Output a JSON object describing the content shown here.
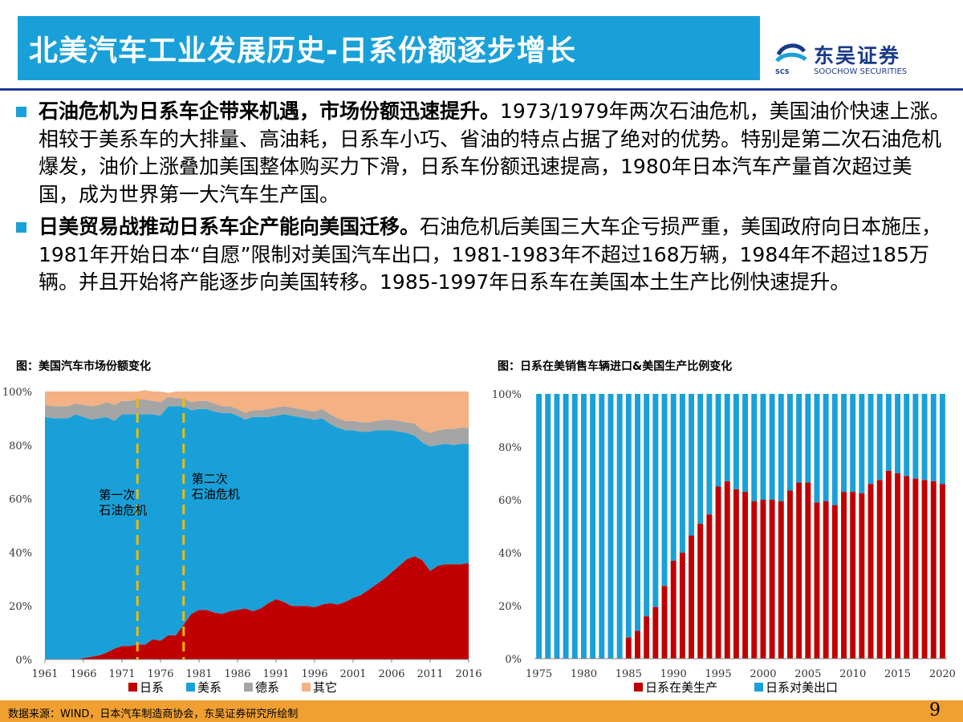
{
  "header": {
    "title": "北美汽车工业发展历史-日系份额逐步增长",
    "logo_cn": "东吴证券",
    "logo_en": "SOOCHOW SECURITIES",
    "logo_mark": "SCS"
  },
  "bullets": [
    {
      "bold": "石油危机为日系车企带来机遇，市场份额迅速提升。",
      "text": "1973/1979年两次石油危机，美国油价快速上涨。相较于美系车的大排量、高油耗，日系车小巧、省油的特点占据了绝对的优势。特别是第二次石油危机爆发，油价上涨叠加美国整体购买力下滑，日系车份额迅速提高，1980年日本汽车产量首次超过美国，成为世界第一大汽车生产国。"
    },
    {
      "bold": "日美贸易战推动日系车企产能向美国迁移。",
      "text": "石油危机后美国三大车企亏损严重，美国政府向日本施压，1981年开始日本“自愿”限制对美国汽车出口，1981-1983年不超过168万辆，1984年不超过185万辆。并且开始将产能逐步向美国转移。1985-1997年日系车在美国本土生产比例快速提升。"
    }
  ],
  "chart_titles": {
    "left": "图：美国汽车市场份额变化",
    "right": "图：日系在美销售车辆进口&美国生产比例变化"
  },
  "footer": {
    "source": "数据来源：WIND，日本汽车制造商协会，东吴证券研究所绘制",
    "page": "9"
  },
  "colors": {
    "accent": "#1aa0d8",
    "japan": "#c00000",
    "us": "#1aa0d8",
    "germany": "#a5a5a5",
    "other": "#f4b183"
  },
  "chart_data": [
    {
      "type": "area",
      "stacked": true,
      "x_start": 1961,
      "x_end": 2016,
      "x_ticks": [
        "1961",
        "1966",
        "1971",
        "1976",
        "1981",
        "1986",
        "1991",
        "1996",
        "2001",
        "2006",
        "2011",
        "2016"
      ],
      "y_ticks": [
        "0%",
        "20%",
        "40%",
        "60%",
        "80%",
        "100%"
      ],
      "ylim": [
        0,
        100
      ],
      "series": [
        {
          "name": "日系",
          "values": [
            0,
            0,
            0,
            0,
            0,
            0.5,
            1,
            1.5,
            2.5,
            4,
            5,
            5,
            5.5,
            5.5,
            7.5,
            7,
            9,
            9,
            13,
            17,
            18.5,
            18.5,
            17.5,
            17,
            18,
            18.5,
            19,
            18,
            19,
            21,
            22.5,
            21.5,
            20,
            20,
            20,
            19.5,
            20.5,
            21,
            20.5,
            21.5,
            23,
            24,
            26,
            28,
            30,
            32.5,
            35,
            37.5,
            38.5,
            37,
            33,
            35,
            35.5,
            35.5,
            35.5,
            36
          ]
        },
        {
          "name": "美系",
          "values": [
            90.5,
            90,
            90,
            90,
            91.5,
            90,
            88.5,
            88.5,
            88,
            85,
            86.5,
            86.5,
            86,
            86,
            84,
            84,
            85.5,
            85.5,
            81.5,
            76,
            75,
            75,
            75,
            75,
            74,
            72.5,
            70.5,
            72.5,
            71.5,
            69.5,
            68.5,
            70,
            71,
            70.5,
            70,
            70,
            69.5,
            67,
            66,
            64,
            62.5,
            61,
            59,
            57.5,
            55.5,
            53,
            50,
            47,
            45,
            44,
            46.5,
            45,
            45,
            44.5,
            45,
            44.5
          ]
        },
        {
          "name": "德系",
          "values": [
            4.5,
            4.5,
            4.5,
            4.5,
            4,
            4.5,
            5,
            5,
            5.5,
            6,
            5,
            5,
            5.5,
            5.5,
            5,
            5,
            3.5,
            3,
            3,
            3,
            3,
            3,
            3,
            2.5,
            2.5,
            2.5,
            2.5,
            2.5,
            2.5,
            3,
            3,
            3,
            3,
            3,
            3,
            3,
            3.5,
            3.5,
            3.5,
            3.5,
            3.5,
            3.5,
            3.5,
            3.5,
            4,
            4,
            4,
            4,
            4.5,
            4.5,
            5,
            5.5,
            5.5,
            6,
            6,
            6
          ]
        },
        {
          "name": "其它",
          "values": [
            5,
            5.5,
            5.5,
            5.5,
            4.5,
            5,
            5.5,
            5,
            4,
            5,
            3.5,
            3.5,
            3,
            3.5,
            3.5,
            4,
            1.5,
            2.5,
            2.5,
            4,
            3.5,
            3.5,
            4.5,
            5.5,
            5.5,
            6.5,
            8,
            7,
            7,
            6.5,
            6,
            5.5,
            6,
            6.5,
            7,
            7.5,
            6.5,
            8.5,
            10,
            11,
            11,
            11.5,
            11.5,
            11,
            10.5,
            10.5,
            11,
            11.5,
            12,
            14.5,
            15.5,
            14.5,
            14,
            14,
            13.5,
            13.5
          ]
        }
      ],
      "annotations": [
        {
          "x": 1973,
          "label": [
            "第一次",
            "石油危机"
          ]
        },
        {
          "x": 1979,
          "label": [
            "第二次",
            "石油危机"
          ]
        }
      ]
    },
    {
      "type": "bar",
      "stacked": true,
      "categories": [
        1975,
        1976,
        1977,
        1978,
        1979,
        1980,
        1981,
        1982,
        1983,
        1984,
        1985,
        1986,
        1987,
        1988,
        1989,
        1990,
        1991,
        1992,
        1993,
        1994,
        1995,
        1996,
        1997,
        1998,
        1999,
        2000,
        2001,
        2002,
        2003,
        2004,
        2005,
        2006,
        2007,
        2008,
        2009,
        2010,
        2011,
        2012,
        2013,
        2014,
        2015,
        2016,
        2017,
        2018,
        2019,
        2020
      ],
      "x_ticks": [
        "1975",
        "1980",
        "1985",
        "1990",
        "1995",
        "2000",
        "2005",
        "2010",
        "2015",
        "2020"
      ],
      "y_ticks": [
        "0%",
        "20%",
        "40%",
        "60%",
        "80%",
        "100%"
      ],
      "ylim": [
        0,
        100
      ],
      "series": [
        {
          "name": "日系在美生产",
          "values": [
            0,
            0,
            0,
            0,
            0,
            0,
            0,
            0,
            0,
            0,
            8,
            10.5,
            16,
            19.5,
            27.5,
            37,
            40,
            46.5,
            51,
            54.5,
            65,
            67,
            64,
            63,
            59.5,
            60,
            60,
            59.5,
            63.5,
            66.5,
            66.5,
            59,
            59.5,
            58,
            63,
            63,
            62.5,
            66,
            67.5,
            71,
            70,
            69,
            68,
            67.5,
            67,
            66
          ]
        },
        {
          "name": "日系对美出口",
          "values": [
            100,
            100,
            100,
            100,
            100,
            100,
            100,
            100,
            100,
            100,
            92,
            89.5,
            84,
            80.5,
            72.5,
            63,
            60,
            53.5,
            49,
            45.5,
            35,
            33,
            36,
            37,
            40.5,
            40,
            40,
            40.5,
            36.5,
            33.5,
            33.5,
            41,
            40.5,
            42,
            37,
            37,
            37.5,
            34,
            32.5,
            29,
            30,
            31,
            32,
            32.5,
            33,
            34
          ]
        }
      ]
    }
  ]
}
